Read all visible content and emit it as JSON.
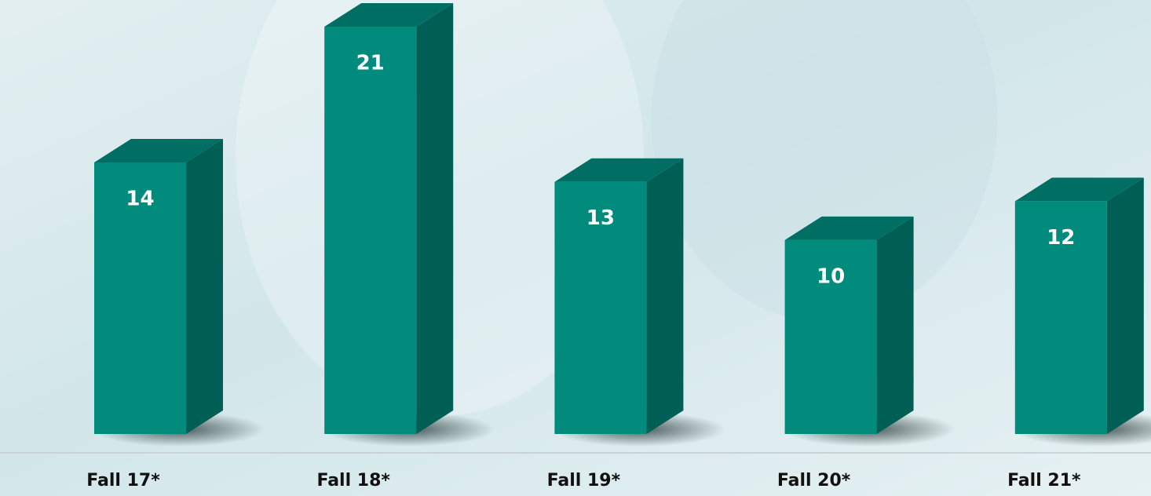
{
  "chart_data": {
    "type": "bar3d",
    "categories": [
      "Fall 17*",
      "Fall 18*",
      "Fall 19*",
      "Fall 20*",
      "Fall 21*"
    ],
    "values": [
      14,
      21,
      13,
      10,
      12
    ],
    "color": "#008b7d"
  }
}
